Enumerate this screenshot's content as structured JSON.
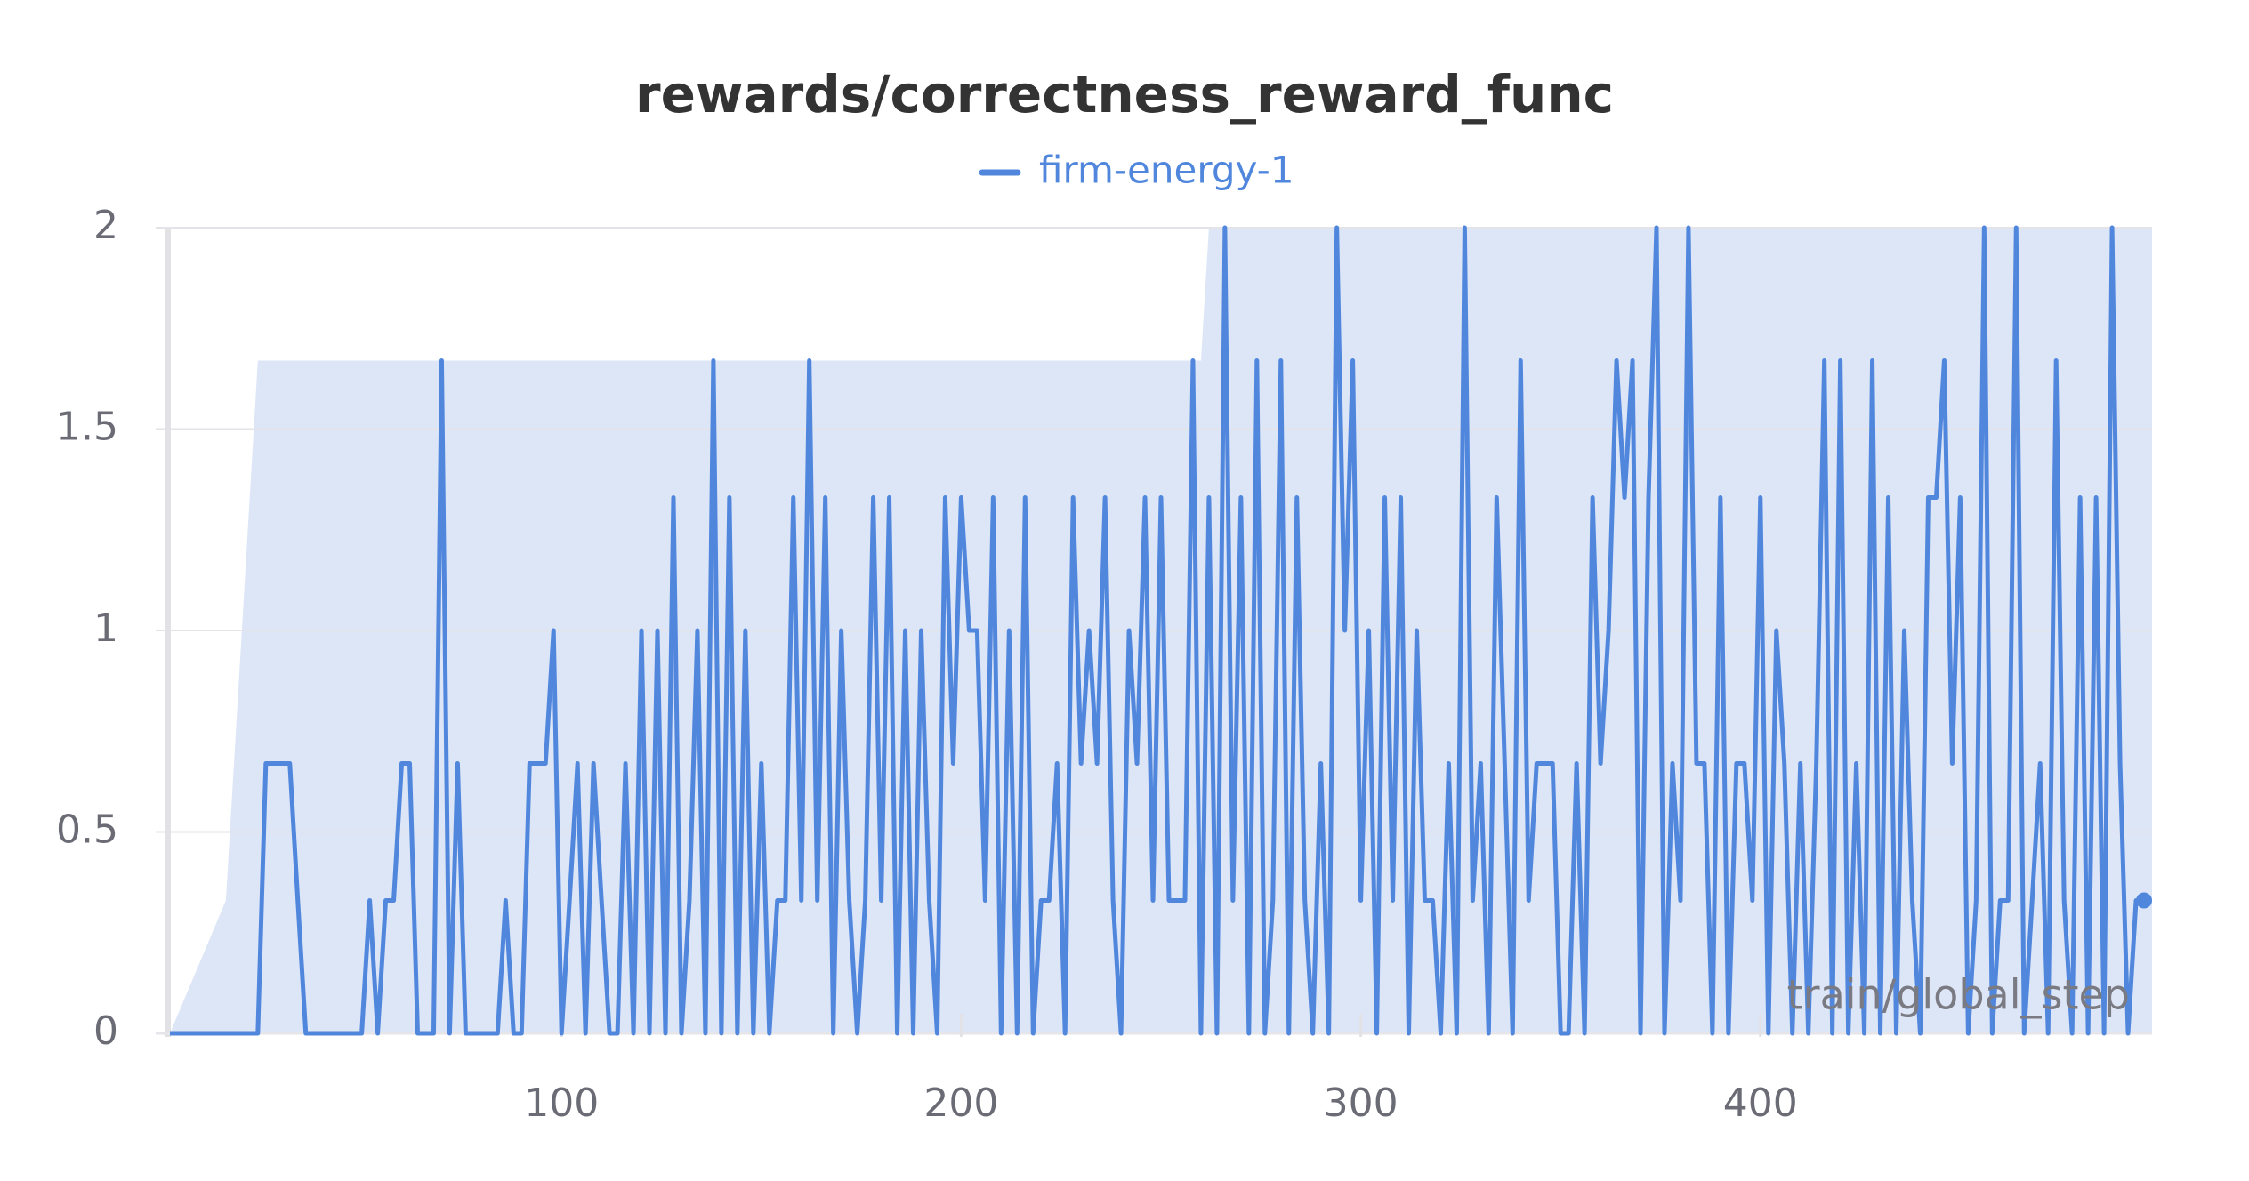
{
  "chart_data": {
    "type": "line",
    "title": "rewards/correctness_reward_func",
    "x_label": "train/global_step",
    "xlim": [
      2,
      498
    ],
    "ylim": [
      0,
      2
    ],
    "xticks": [
      100,
      200,
      300,
      400
    ],
    "yticks": [
      0,
      0.5,
      1,
      1.5,
      2
    ],
    "grid": true,
    "legend": "top",
    "band": {
      "color": "#dde6f7",
      "x": [
        2,
        16,
        24,
        260,
        262,
        498
      ],
      "upper": [
        0,
        0.33,
        1.67,
        1.67,
        2,
        2
      ],
      "lower": [
        0,
        0,
        0,
        0,
        0,
        0
      ]
    },
    "x": [
      2,
      4,
      6,
      8,
      10,
      12,
      14,
      16,
      18,
      20,
      22,
      24,
      26,
      28,
      30,
      32,
      34,
      36,
      38,
      40,
      42,
      44,
      46,
      48,
      50,
      52,
      54,
      56,
      58,
      60,
      62,
      64,
      66,
      68,
      70,
      72,
      74,
      76,
      78,
      80,
      82,
      84,
      86,
      88,
      90,
      92,
      94,
      96,
      98,
      100,
      102,
      104,
      106,
      108,
      110,
      112,
      114,
      116,
      118,
      120,
      122,
      124,
      126,
      128,
      130,
      132,
      134,
      136,
      138,
      140,
      142,
      144,
      146,
      148,
      150,
      152,
      154,
      156,
      158,
      160,
      162,
      164,
      166,
      168,
      170,
      172,
      174,
      176,
      178,
      180,
      182,
      184,
      186,
      188,
      190,
      192,
      194,
      196,
      198,
      200,
      202,
      204,
      206,
      208,
      210,
      212,
      214,
      216,
      218,
      220,
      222,
      224,
      226,
      228,
      230,
      232,
      234,
      236,
      238,
      240,
      242,
      244,
      246,
      248,
      250,
      252,
      254,
      256,
      258,
      260,
      262,
      264,
      266,
      268,
      270,
      272,
      274,
      276,
      278,
      280,
      282,
      284,
      286,
      288,
      290,
      292,
      294,
      296,
      298,
      300,
      302,
      304,
      306,
      308,
      310,
      312,
      314,
      316,
      318,
      320,
      322,
      324,
      326,
      328,
      330,
      332,
      334,
      336,
      338,
      340,
      342,
      344,
      346,
      348,
      350,
      352,
      354,
      356,
      358,
      360,
      362,
      364,
      366,
      368,
      370,
      372,
      374,
      376,
      378,
      380,
      382,
      384,
      386,
      388,
      390,
      392,
      394,
      396,
      398,
      400,
      402,
      404,
      406,
      408,
      410,
      412,
      414,
      416,
      418,
      420,
      422,
      424,
      426,
      428,
      430,
      432,
      434,
      436,
      438,
      440,
      442,
      444,
      446,
      448,
      450,
      452,
      454,
      456,
      458,
      460,
      462,
      464,
      466,
      468,
      470,
      472,
      474,
      476,
      478,
      480,
      482,
      484,
      486,
      488,
      490,
      492,
      494,
      496
    ],
    "series": [
      {
        "name": "firm-energy-1",
        "color": "#5087dd",
        "values": [
          0,
          0,
          0,
          0,
          0,
          0,
          0,
          0,
          0,
          0,
          0,
          0,
          0.67,
          0.67,
          0.67,
          0.67,
          0.33,
          0,
          0,
          0,
          0,
          0,
          0,
          0,
          0,
          0.33,
          0,
          0.33,
          0.33,
          0.67,
          0.67,
          0,
          0,
          0,
          1.67,
          0,
          0.67,
          0,
          0,
          0,
          0,
          0,
          0.33,
          0,
          0,
          0.67,
          0.67,
          0.67,
          1,
          0,
          0.33,
          0.67,
          0,
          0.67,
          0.33,
          0,
          0,
          0.67,
          0,
          1,
          0,
          1,
          0,
          1.33,
          0,
          0.33,
          1,
          0,
          1.67,
          0,
          1.33,
          0,
          1,
          0,
          0.67,
          0,
          0.33,
          0.33,
          1.33,
          0.33,
          1.67,
          0.33,
          1.33,
          0,
          1,
          0.33,
          0,
          0.33,
          1.33,
          0.33,
          1.33,
          0,
          1,
          0,
          1,
          0.33,
          0,
          1.33,
          0.67,
          1.33,
          1,
          1,
          0.33,
          1.33,
          0,
          1,
          0,
          1.33,
          0,
          0.33,
          0.33,
          0.67,
          0,
          1.33,
          0.67,
          1,
          0.67,
          1.33,
          0.33,
          0,
          1,
          0.67,
          1.33,
          0.33,
          1.33,
          0.33,
          0.33,
          0.33,
          1.67,
          0,
          1.33,
          0,
          2,
          0.33,
          1.33,
          0,
          1.67,
          0,
          0.33,
          1.67,
          0,
          1.33,
          0.33,
          0,
          0.67,
          0,
          2,
          1,
          1.67,
          0.33,
          1,
          0,
          1.33,
          0.33,
          1.33,
          0,
          1,
          0.33,
          0.33,
          0,
          0.67,
          0,
          2,
          0.33,
          0.67,
          0,
          1.33,
          0.67,
          0,
          1.67,
          0.33,
          0.67,
          0.67,
          0.67,
          0,
          0,
          0.67,
          0,
          1.33,
          0.67,
          1,
          1.67,
          1.33,
          1.67,
          0,
          1.33,
          2,
          0,
          0.67,
          0.33,
          2,
          0.67,
          0.67,
          0,
          1.33,
          0,
          0.67,
          0.67,
          0.33,
          1.33,
          0,
          1,
          0.67,
          0,
          0.67,
          0,
          0.67,
          1.67,
          0,
          1.67,
          0,
          0.67,
          0,
          1.67,
          0,
          1.33,
          0,
          1,
          0.33,
          0,
          1.33,
          1.33,
          1.67,
          0.67,
          1.33,
          0,
          0.33,
          2,
          0,
          0.33,
          0.33,
          2,
          0,
          0.33,
          0.67,
          0,
          1.67,
          0.33,
          0,
          1.33,
          0,
          1.33,
          0,
          2,
          0.67,
          0,
          0.33,
          0.33
        ]
      }
    ]
  }
}
